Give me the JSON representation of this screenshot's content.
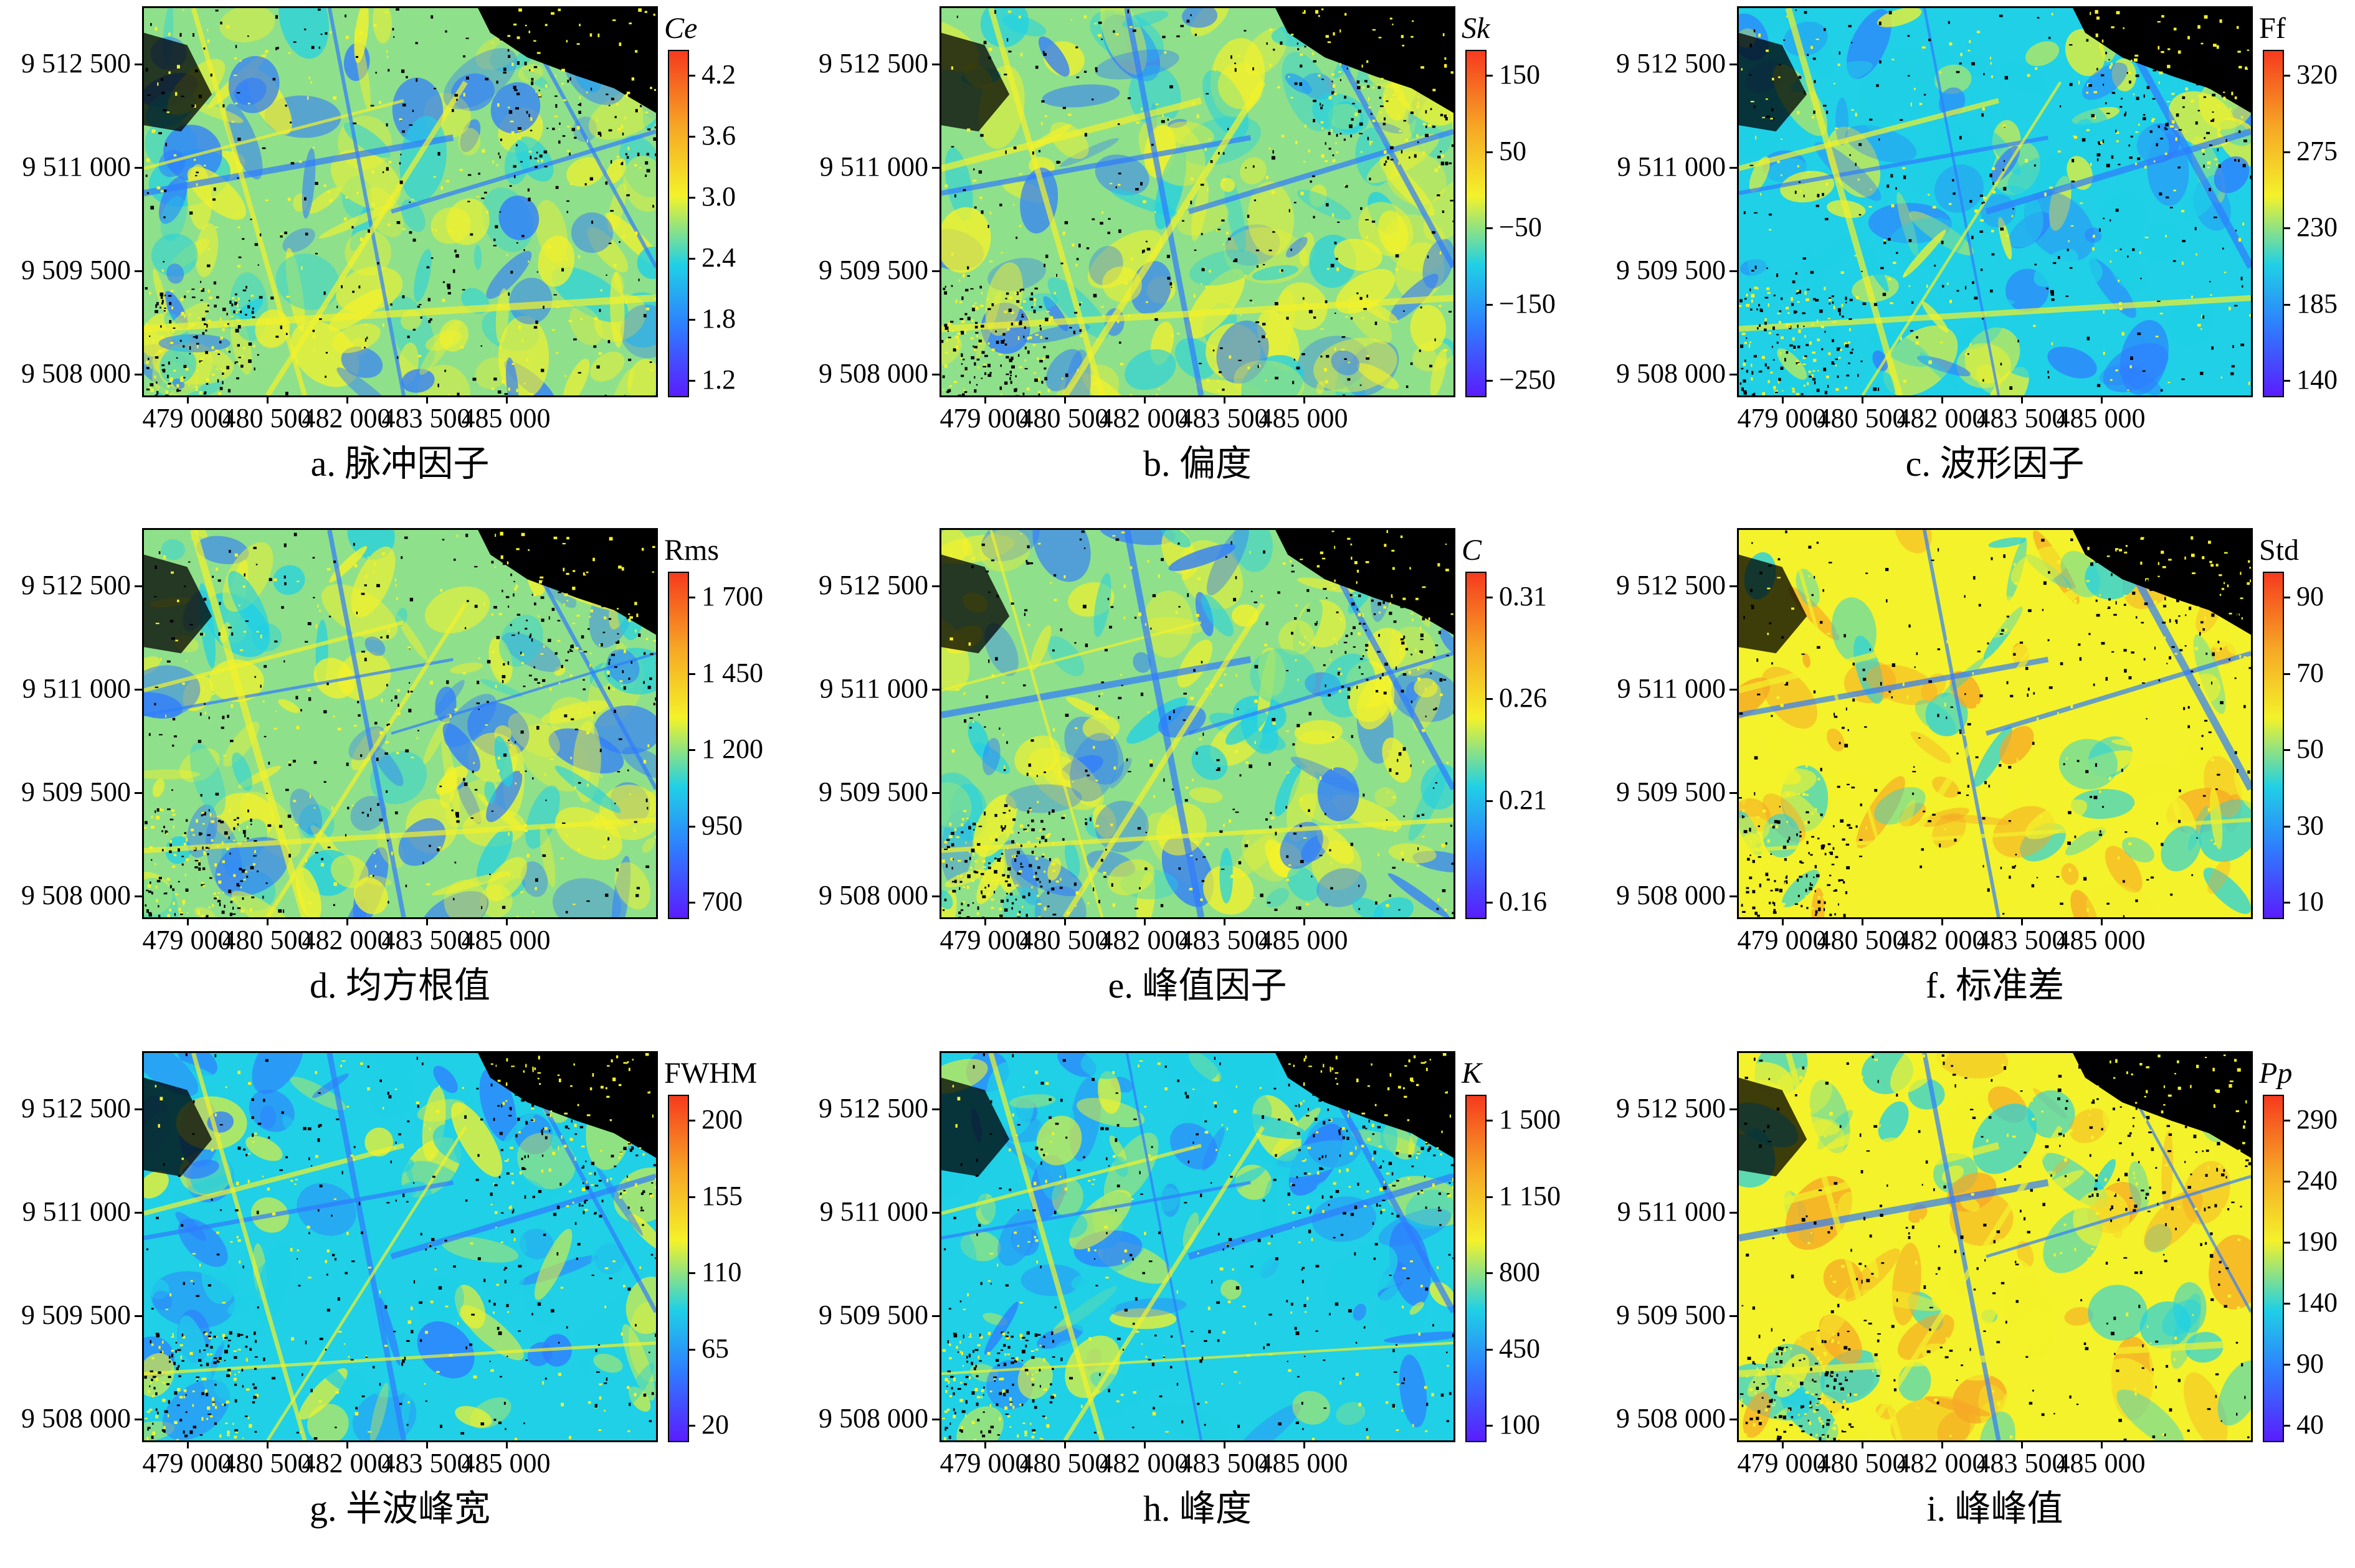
{
  "colors": {
    "palette": [
      "#5a1cff",
      "#2f7cff",
      "#1fd0e6",
      "#f4f22a",
      "#f6a725",
      "#f63a1e"
    ],
    "background_speckle": "#000000"
  },
  "y_tick_labels": [
    "9 512 500",
    "9 511 000",
    "9 509 500",
    "9 508 000"
  ],
  "x_tick_labels": [
    "479 000",
    "480 500",
    "482 000",
    "483 500",
    "485 000"
  ],
  "panels": [
    {
      "caption": "a. 脉冲因子",
      "colorbar_title": "Ce",
      "title_italic": true,
      "colorbar_ticks": [
        "4.2",
        "3.6",
        "3.0",
        "2.4",
        "1.8",
        "1.2"
      ],
      "dominant": "mixed"
    },
    {
      "caption": "b. 偏度",
      "colorbar_title": "Sk",
      "title_italic": true,
      "colorbar_ticks": [
        "150",
        "50",
        "−50",
        "−150",
        "−250"
      ],
      "dominant": "mixed"
    },
    {
      "caption": "c. 波形因子",
      "colorbar_title": "Ff",
      "title_italic": false,
      "colorbar_ticks": [
        "320",
        "275",
        "230",
        "185",
        "140"
      ],
      "dominant": "cyan"
    },
    {
      "caption": "d. 均方根值",
      "colorbar_title": "Rms",
      "title_italic": false,
      "colorbar_ticks": [
        "1 700",
        "1 450",
        "1 200",
        "950",
        "700"
      ],
      "dominant": "mixed"
    },
    {
      "caption": "e. 峰值因子",
      "colorbar_title": "C",
      "title_italic": true,
      "colorbar_ticks": [
        "0.31",
        "0.26",
        "0.21",
        "0.16"
      ],
      "dominant": "mixed"
    },
    {
      "caption": "f. 标准差",
      "colorbar_title": "Std",
      "title_italic": false,
      "colorbar_ticks": [
        "90",
        "70",
        "50",
        "30",
        "10"
      ],
      "dominant": "yellow"
    },
    {
      "caption": "g. 半波峰宽",
      "colorbar_title": "FWHM",
      "title_italic": false,
      "colorbar_ticks": [
        "200",
        "155",
        "110",
        "65",
        "20"
      ],
      "dominant": "cyan"
    },
    {
      "caption": "h. 峰度",
      "colorbar_title": "K",
      "title_italic": true,
      "colorbar_ticks": [
        "1 500",
        "1 150",
        "800",
        "450",
        "100"
      ],
      "dominant": "cyan"
    },
    {
      "caption": "i. 峰峰值",
      "colorbar_title": "Pp",
      "title_italic": true,
      "colorbar_ticks": [
        "290",
        "240",
        "190",
        "140",
        "90",
        "40"
      ],
      "dominant": "yellow"
    }
  ]
}
